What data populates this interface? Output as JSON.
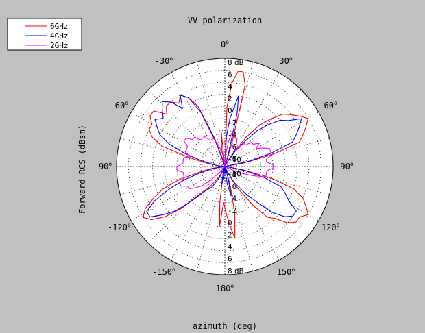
{
  "chart_data": {
    "type": "polar-line",
    "title": "VV polarization",
    "ylabel": "Forward RCS (dBsm)",
    "xlabel": "azimuth (deg)",
    "r_unit": "dB",
    "r_range": [
      -10,
      8
    ],
    "r_ticks": [
      "8",
      "6",
      "4",
      "2",
      "0",
      "-2",
      "-4",
      "-6",
      "-8",
      "-10"
    ],
    "angle_ticks": [
      {
        "deg": 0,
        "label": "0"
      },
      {
        "deg": 30,
        "label": "30"
      },
      {
        "deg": 60,
        "label": "60"
      },
      {
        "deg": 90,
        "label": "90"
      },
      {
        "deg": 120,
        "label": "120"
      },
      {
        "deg": 150,
        "label": "150"
      },
      {
        "deg": 180,
        "label": "180"
      },
      {
        "deg": -150,
        "label": "-150"
      },
      {
        "deg": -120,
        "label": "-120"
      },
      {
        "deg": -90,
        "label": "-90"
      },
      {
        "deg": -60,
        "label": "-60"
      },
      {
        "deg": -30,
        "label": "-30"
      }
    ],
    "grid": true,
    "legend_position": "top-left",
    "series": [
      {
        "name": "6GHz",
        "color": "#ff0000",
        "points": [
          [
            0,
            -10
          ],
          [
            2,
            0
          ],
          [
            5,
            4
          ],
          [
            8,
            6
          ],
          [
            11,
            6
          ],
          [
            14,
            4
          ],
          [
            17,
            -6
          ],
          [
            20,
            -10
          ],
          [
            24,
            -10
          ],
          [
            28,
            -9
          ],
          [
            32,
            -7
          ],
          [
            36,
            -4
          ],
          [
            40,
            -1
          ],
          [
            44,
            1
          ],
          [
            48,
            3
          ],
          [
            52,
            4
          ],
          [
            56,
            5
          ],
          [
            60,
            6
          ],
          [
            64,
            5
          ],
          [
            68,
            4
          ],
          [
            72,
            3
          ],
          [
            76,
            -2
          ],
          [
            80,
            -7
          ],
          [
            84,
            -10
          ],
          [
            90,
            -10
          ],
          [
            96,
            -10
          ],
          [
            100,
            -7
          ],
          [
            104,
            -2
          ],
          [
            108,
            2
          ],
          [
            112,
            4
          ],
          [
            116,
            5
          ],
          [
            120,
            6
          ],
          [
            124,
            5
          ],
          [
            128,
            5
          ],
          [
            132,
            4
          ],
          [
            136,
            2
          ],
          [
            140,
            1
          ],
          [
            144,
            -2
          ],
          [
            150,
            -6
          ],
          [
            156,
            -9
          ],
          [
            160,
            -10
          ],
          [
            164,
            -7
          ],
          [
            168,
            -2
          ],
          [
            172,
            2
          ],
          [
            175,
            0
          ],
          [
            178,
            -2
          ],
          [
            182,
            -4
          ],
          [
            185,
            0
          ],
          [
            188,
            -4
          ],
          [
            191,
            -8
          ],
          [
            195,
            -10
          ],
          [
            200,
            -10
          ],
          [
            205,
            -9
          ],
          [
            210,
            -8
          ],
          [
            216,
            -6
          ],
          [
            222,
            -4
          ],
          [
            226,
            0
          ],
          [
            230,
            3
          ],
          [
            234,
            5
          ],
          [
            238,
            6
          ],
          [
            242,
            5
          ],
          [
            246,
            3
          ],
          [
            250,
            1
          ],
          [
            254,
            -2
          ],
          [
            258,
            -6
          ],
          [
            262,
            -8
          ],
          [
            266,
            -10
          ],
          [
            270,
            -10
          ],
          [
            276,
            -9
          ],
          [
            280,
            -7
          ],
          [
            284,
            -4
          ],
          [
            288,
            1
          ],
          [
            292,
            3
          ],
          [
            296,
            4
          ],
          [
            300,
            4
          ],
          [
            304,
            5
          ],
          [
            308,
            5
          ],
          [
            312,
            3
          ],
          [
            316,
            4
          ],
          [
            320,
            4
          ],
          [
            324,
            3
          ],
          [
            328,
            4
          ],
          [
            332,
            3
          ],
          [
            336,
            0
          ],
          [
            340,
            -6
          ],
          [
            344,
            -10
          ],
          [
            350,
            -7
          ],
          [
            354,
            -4
          ],
          [
            358,
            -10
          ]
        ]
      },
      {
        "name": "4GHz",
        "color": "#0000ff",
        "points": [
          [
            0,
            -10
          ],
          [
            3,
            -5
          ],
          [
            6,
            -2
          ],
          [
            9,
            0
          ],
          [
            11,
            2
          ],
          [
            13,
            -1
          ],
          [
            16,
            -8
          ],
          [
            20,
            -10
          ],
          [
            25,
            -10
          ],
          [
            30,
            -9
          ],
          [
            34,
            -7
          ],
          [
            38,
            -5
          ],
          [
            42,
            -2
          ],
          [
            46,
            0
          ],
          [
            50,
            2
          ],
          [
            54,
            3
          ],
          [
            58,
            5
          ],
          [
            62,
            4
          ],
          [
            66,
            3
          ],
          [
            70,
            2
          ],
          [
            74,
            -2
          ],
          [
            78,
            -6
          ],
          [
            82,
            -10
          ],
          [
            90,
            -10
          ],
          [
            98,
            -9
          ],
          [
            102,
            -6
          ],
          [
            106,
            -3
          ],
          [
            110,
            0
          ],
          [
            114,
            1
          ],
          [
            118,
            2
          ],
          [
            122,
            4
          ],
          [
            126,
            4
          ],
          [
            130,
            3
          ],
          [
            134,
            1
          ],
          [
            138,
            -2
          ],
          [
            142,
            -4
          ],
          [
            146,
            -6
          ],
          [
            150,
            -7
          ],
          [
            155,
            -9
          ],
          [
            160,
            -10
          ],
          [
            164,
            -8
          ],
          [
            168,
            -5
          ],
          [
            172,
            -7
          ],
          [
            176,
            -9
          ],
          [
            180,
            -10
          ],
          [
            185,
            -8
          ],
          [
            190,
            -7
          ],
          [
            195,
            -9
          ],
          [
            200,
            -10
          ],
          [
            206,
            -8
          ],
          [
            212,
            -6
          ],
          [
            218,
            -5
          ],
          [
            224,
            -2
          ],
          [
            228,
            1
          ],
          [
            232,
            3
          ],
          [
            236,
            5
          ],
          [
            240,
            5
          ],
          [
            244,
            3
          ],
          [
            248,
            0
          ],
          [
            252,
            -3
          ],
          [
            256,
            -6
          ],
          [
            260,
            -8
          ],
          [
            264,
            -10
          ],
          [
            270,
            -10
          ],
          [
            276,
            -9
          ],
          [
            280,
            -8
          ],
          [
            284,
            -6
          ],
          [
            288,
            -3
          ],
          [
            292,
            0
          ],
          [
            296,
            2
          ],
          [
            300,
            3
          ],
          [
            304,
            4
          ],
          [
            308,
            3
          ],
          [
            312,
            4
          ],
          [
            316,
            5
          ],
          [
            320,
            4
          ],
          [
            324,
            2
          ],
          [
            328,
            4
          ],
          [
            332,
            3
          ],
          [
            336,
            1
          ],
          [
            340,
            -5
          ],
          [
            344,
            -9
          ],
          [
            350,
            -10
          ],
          [
            356,
            -10
          ]
        ]
      },
      {
        "name": "2GHz",
        "color": "#ff00ff",
        "points": [
          [
            0,
            -10
          ],
          [
            4,
            -8
          ],
          [
            8,
            -6
          ],
          [
            12,
            -4
          ],
          [
            16,
            -4
          ],
          [
            20,
            -5
          ],
          [
            24,
            -5
          ],
          [
            28,
            -6
          ],
          [
            32,
            -7
          ],
          [
            36,
            -6
          ],
          [
            40,
            -5
          ],
          [
            44,
            -5
          ],
          [
            48,
            -4
          ],
          [
            52,
            -4
          ],
          [
            56,
            -3
          ],
          [
            60,
            -4
          ],
          [
            64,
            -3
          ],
          [
            68,
            -2
          ],
          [
            72,
            -2
          ],
          [
            76,
            -2
          ],
          [
            80,
            -3
          ],
          [
            84,
            -3
          ],
          [
            88,
            -2
          ],
          [
            92,
            -2
          ],
          [
            96,
            -3
          ],
          [
            100,
            -3
          ],
          [
            104,
            -3
          ],
          [
            108,
            -5
          ],
          [
            112,
            -7
          ],
          [
            116,
            -9
          ],
          [
            120,
            -10
          ],
          [
            125,
            -10
          ],
          [
            130,
            -10
          ],
          [
            135,
            -10
          ],
          [
            140,
            -10
          ],
          [
            150,
            -10
          ],
          [
            160,
            -10
          ],
          [
            170,
            -10
          ],
          [
            180,
            -10
          ],
          [
            190,
            -10
          ],
          [
            200,
            -10
          ],
          [
            210,
            -10
          ],
          [
            220,
            -9
          ],
          [
            226,
            -7
          ],
          [
            230,
            -5
          ],
          [
            234,
            -4
          ],
          [
            238,
            -3
          ],
          [
            242,
            -3
          ],
          [
            246,
            -2
          ],
          [
            250,
            -2
          ],
          [
            254,
            -3
          ],
          [
            258,
            -3
          ],
          [
            262,
            -3
          ],
          [
            266,
            -2
          ],
          [
            270,
            -2
          ],
          [
            274,
            -3
          ],
          [
            278,
            -3
          ],
          [
            282,
            -3
          ],
          [
            286,
            -4
          ],
          [
            290,
            -3
          ],
          [
            294,
            -3
          ],
          [
            298,
            -3
          ],
          [
            302,
            -2
          ],
          [
            306,
            -2
          ],
          [
            310,
            -3
          ],
          [
            314,
            -3
          ],
          [
            318,
            -4
          ],
          [
            322,
            -4
          ],
          [
            326,
            -4
          ],
          [
            330,
            -5
          ],
          [
            334,
            -5
          ],
          [
            338,
            -5
          ],
          [
            342,
            -6
          ],
          [
            346,
            -7
          ],
          [
            350,
            -8
          ],
          [
            354,
            -9
          ],
          [
            358,
            -10
          ]
        ]
      }
    ]
  }
}
